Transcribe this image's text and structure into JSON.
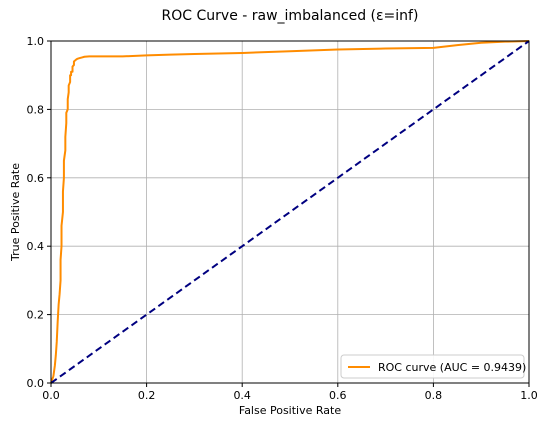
{
  "chart_data": {
    "type": "line",
    "title": "ROC Curve - raw_imbalanced (ε=inf)",
    "xlabel": "False Positive Rate",
    "ylabel": "True Positive Rate",
    "xlim": [
      0.0,
      1.0
    ],
    "ylim": [
      0.0,
      1.0
    ],
    "xticks": [
      "0.0",
      "0.2",
      "0.4",
      "0.6",
      "0.8",
      "1.0"
    ],
    "yticks": [
      "0.0",
      "0.2",
      "0.4",
      "0.6",
      "0.8",
      "1.0"
    ],
    "grid": true,
    "legend_position": "lower-right",
    "series": [
      {
        "name": "ROC curve (AUC = 0.9439)",
        "color": "#ff8c00",
        "style": "solid",
        "x": [
          0.0,
          0.005,
          0.008,
          0.01,
          0.012,
          0.014,
          0.016,
          0.018,
          0.02,
          0.02,
          0.022,
          0.022,
          0.025,
          0.025,
          0.027,
          0.027,
          0.03,
          0.03,
          0.032,
          0.032,
          0.035,
          0.035,
          0.037,
          0.037,
          0.04,
          0.04,
          0.042,
          0.042,
          0.045,
          0.045,
          0.048,
          0.048,
          0.052,
          0.055,
          0.06,
          0.065,
          0.07,
          0.08,
          0.1,
          0.15,
          0.2,
          0.25,
          0.3,
          0.4,
          0.5,
          0.6,
          0.7,
          0.8,
          0.85,
          0.9,
          0.95,
          1.0
        ],
        "y": [
          0.0,
          0.02,
          0.05,
          0.08,
          0.12,
          0.18,
          0.23,
          0.26,
          0.3,
          0.36,
          0.4,
          0.46,
          0.5,
          0.56,
          0.6,
          0.65,
          0.68,
          0.72,
          0.76,
          0.79,
          0.8,
          0.83,
          0.85,
          0.87,
          0.88,
          0.9,
          0.9,
          0.91,
          0.91,
          0.925,
          0.93,
          0.94,
          0.945,
          0.948,
          0.95,
          0.952,
          0.954,
          0.955,
          0.955,
          0.955,
          0.958,
          0.96,
          0.962,
          0.965,
          0.97,
          0.975,
          0.978,
          0.98,
          0.988,
          0.995,
          0.998,
          1.0
        ]
      },
      {
        "name": "",
        "color": "#000080",
        "style": "dashed",
        "x": [
          0.0,
          1.0
        ],
        "y": [
          0.0,
          1.0
        ]
      }
    ]
  }
}
